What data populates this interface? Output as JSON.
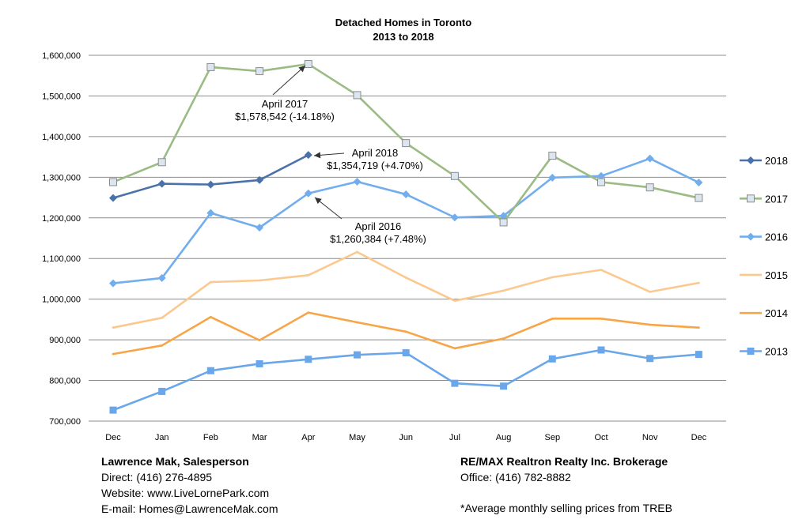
{
  "chart_data": {
    "type": "line",
    "title": "Detached Homes in Toronto",
    "subtitle": "2013 to 2018",
    "xlabel": "",
    "ylabel": "",
    "categories": [
      "Dec",
      "Jan",
      "Feb",
      "Mar",
      "Apr",
      "May",
      "Jun",
      "Jul",
      "Aug",
      "Sep",
      "Oct",
      "Nov",
      "Dec"
    ],
    "ylim": [
      700000,
      1600000
    ],
    "yticks": [
      700000,
      800000,
      900000,
      1000000,
      1100000,
      1200000,
      1300000,
      1400000,
      1500000,
      1600000
    ],
    "ytick_labels": [
      "700,000",
      "800,000",
      "900,000",
      "1,000,000",
      "1,100,000",
      "1,200,000",
      "1,300,000",
      "1,400,000",
      "1,500,000",
      "1,600,000"
    ],
    "grid": true,
    "legend_position": "right",
    "series": [
      {
        "name": "2018",
        "color": "#4a72a8",
        "marker": "diamond",
        "values": [
          1249000,
          1284000,
          1282000,
          1293000,
          1354719,
          null,
          null,
          null,
          null,
          null,
          null,
          null,
          null
        ]
      },
      {
        "name": "2017",
        "color": "#9bbb84",
        "marker": "square-open",
        "values": [
          1288000,
          1337000,
          1571000,
          1561000,
          1578542,
          1502000,
          1384000,
          1303000,
          1189000,
          1353000,
          1288000,
          1275000,
          1249000
        ]
      },
      {
        "name": "2016",
        "color": "#72aeee",
        "marker": "diamond",
        "values": [
          1039000,
          1052000,
          1212000,
          1176000,
          1260384,
          1289000,
          1258000,
          1201000,
          1205000,
          1299000,
          1303000,
          1346000,
          1287000
        ]
      },
      {
        "name": "2015",
        "color": "#fbc98f",
        "marker": "none",
        "values": [
          930000,
          954000,
          1042000,
          1046000,
          1059000,
          1116000,
          1053000,
          996000,
          1021000,
          1054000,
          1072000,
          1018000,
          1040000
        ]
      },
      {
        "name": "2014",
        "color": "#f7a547",
        "marker": "none",
        "values": [
          865000,
          886000,
          956000,
          899000,
          967000,
          943000,
          920000,
          879000,
          903000,
          952000,
          952000,
          937000,
          930000
        ]
      },
      {
        "name": "2013",
        "color": "#6aa7ea",
        "marker": "square",
        "values": [
          727000,
          773000,
          824000,
          841000,
          852000,
          863000,
          868000,
          793000,
          786000,
          853000,
          875000,
          854000,
          864000
        ]
      }
    ],
    "annotations": [
      {
        "series": "2017",
        "index": 4,
        "line1": "April 2017",
        "line2": "$1,578,542 (-14.18%)"
      },
      {
        "series": "2018",
        "index": 4,
        "line1": "April 2018",
        "line2": "$1,354,719 (+4.70%)"
      },
      {
        "series": "2016",
        "index": 4,
        "line1": "April 2016",
        "line2": "$1,260,384 (+7.48%)"
      }
    ]
  },
  "footer": {
    "left": {
      "name": "Lawrence Mak, Salesperson",
      "direct": "Direct:  (416) 276-4895",
      "website": "Website:  www.LiveLornePark.com",
      "email": "E-mail:  Homes@LawrenceMak.com"
    },
    "right": {
      "company": "RE/MAX Realtron Realty Inc. Brokerage",
      "office": "Office: (416) 782-8882"
    },
    "note": "*Average monthly selling prices from TREB"
  }
}
